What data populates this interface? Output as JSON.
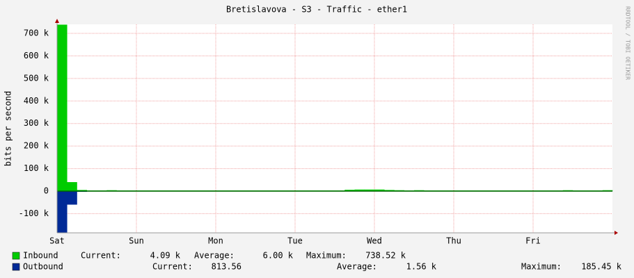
{
  "chart_data": {
    "type": "bar",
    "title": "Bretislavova - S3 - Traffic - ether1",
    "y_label": "bits per second",
    "side_note": "RRDTOOL / TOBI OETIKER",
    "categories": [
      "Sat",
      null,
      null,
      null,
      null,
      null,
      null,
      null,
      "Sun",
      null,
      null,
      null,
      null,
      null,
      null,
      null,
      "Mon",
      null,
      null,
      null,
      null,
      null,
      null,
      null,
      "Tue",
      null,
      null,
      null,
      null,
      null,
      null,
      null,
      "Wed",
      null,
      null,
      null,
      null,
      null,
      null,
      null,
      "Thu",
      null,
      null,
      null,
      null,
      null,
      null,
      null,
      "Fri",
      null,
      null,
      null,
      null,
      null,
      null,
      null
    ],
    "series": [
      {
        "name": "Inbound",
        "color": "#00cc00",
        "values": [
          738520,
          40000,
          5000,
          3000,
          3000,
          4000,
          3000,
          3000,
          3000,
          3000,
          3000,
          3000,
          3000,
          3000,
          3000,
          3000,
          3000,
          3000,
          3000,
          3000,
          3000,
          3000,
          3000,
          3000,
          3000,
          3000,
          3000,
          3000,
          3000,
          6000,
          7000,
          7000,
          7000,
          5000,
          4000,
          3000,
          4000,
          3000,
          3000,
          3000,
          3000,
          3000,
          3000,
          3000,
          3000,
          3000,
          3000,
          3000,
          3000,
          3000,
          3000,
          4000,
          3000,
          3000,
          3000,
          4090
        ]
      },
      {
        "name": "Outbound",
        "color": "#002a97",
        "values": [
          -185450,
          -60000,
          -3000,
          -800,
          -800,
          -800,
          -800,
          -800,
          -800,
          -800,
          -800,
          -800,
          -800,
          -800,
          -800,
          -800,
          -800,
          -800,
          -800,
          -800,
          -800,
          -800,
          -800,
          -800,
          -800,
          -800,
          -800,
          -800,
          -800,
          -900,
          -1000,
          -1000,
          -1000,
          -900,
          -800,
          -800,
          -800,
          -800,
          -800,
          -800,
          -800,
          -800,
          -800,
          -800,
          -800,
          -800,
          -800,
          -800,
          -800,
          -800,
          -800,
          -800,
          -800,
          -800,
          -800,
          -813.56
        ]
      }
    ],
    "stats": [
      [
        "Current:",
        "4.09 k",
        "Average:",
        "6.00 k",
        "Maximum:",
        "738.52 k"
      ],
      [
        "Current:",
        "813.56",
        "Average:",
        "1.56 k",
        "Maximum:",
        "185.45 k"
      ]
    ],
    "ylim": [
      -185000,
      740000
    ],
    "yticks": [
      {
        "value": -100000,
        "label": "-100 k"
      },
      0,
      {
        "value": 100000,
        "label": "100 k"
      },
      {
        "value": 200000,
        "label": "200 k"
      },
      {
        "value": 300000,
        "label": "300 k"
      },
      {
        "value": 400000,
        "label": "400 k"
      },
      {
        "value": 500000,
        "label": "500 k"
      },
      {
        "value": 600000,
        "label": "600 k"
      },
      {
        "value": 700000,
        "label": "700 k"
      }
    ],
    "grid": true
  }
}
